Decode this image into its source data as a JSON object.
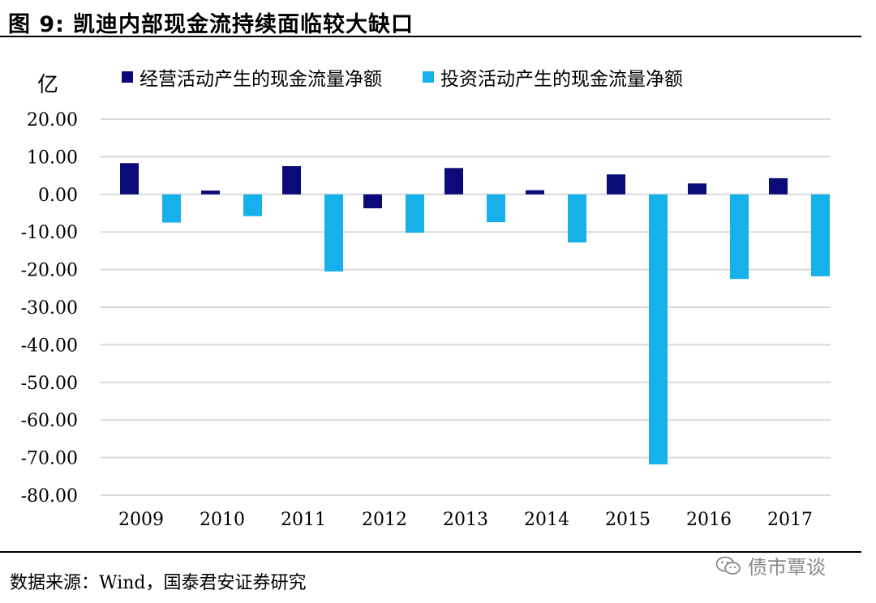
{
  "figure": {
    "label": "图 9:",
    "title": "凯迪内部现金流持续面临较大缺口"
  },
  "unit": "亿",
  "source": "数据来源：Wind，国泰君安证券研究",
  "watermark": {
    "text": "债市覃谈",
    "icon": "wechat-icon"
  },
  "colors": {
    "operating": "#0a0a78",
    "investing": "#16b0ea",
    "grid": "#d9d9d9"
  },
  "chart_data": {
    "type": "bar",
    "categories": [
      "2009",
      "2010",
      "2011",
      "2012",
      "2013",
      "2014",
      "2015",
      "2016",
      "2017"
    ],
    "series": [
      {
        "name": "经营活动产生的现金流量净额",
        "values": [
          8.3,
          1.0,
          7.5,
          -3.7,
          7.0,
          1.1,
          5.3,
          2.9,
          4.3
        ]
      },
      {
        "name": "投资活动产生的现金流量净额",
        "values": [
          -7.5,
          -5.8,
          -20.5,
          -10.2,
          -7.4,
          -12.8,
          -71.8,
          -22.5,
          -21.8
        ]
      }
    ],
    "yticks": [
      "20.00",
      "10.00",
      "0.00",
      "-10.00",
      "-20.00",
      "-30.00",
      "-40.00",
      "-50.00",
      "-60.00",
      "-70.00",
      "-80.00"
    ],
    "ylim": [
      -80,
      20
    ],
    "ylabel": "亿",
    "xlabel": "",
    "grid": true,
    "legend": "top"
  }
}
